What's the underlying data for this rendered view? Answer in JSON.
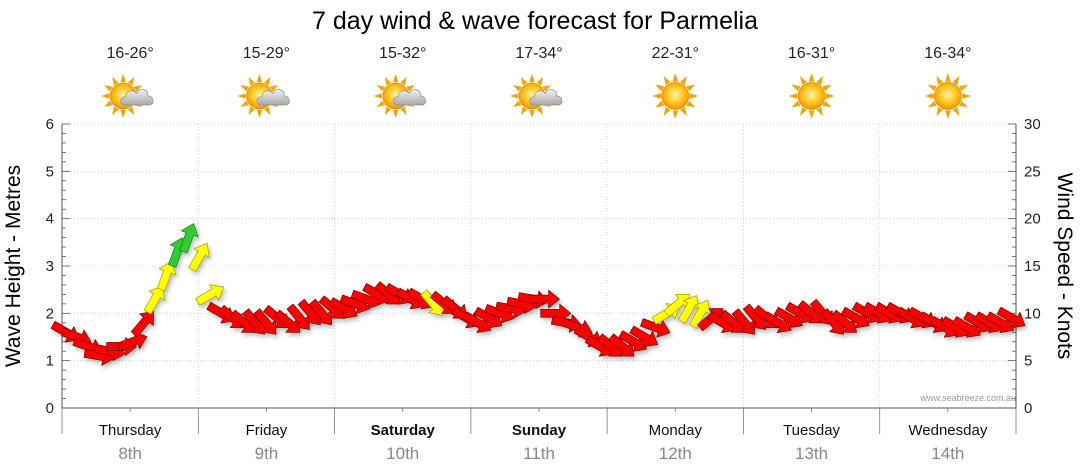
{
  "chart_data": {
    "type": "line",
    "title": "7 day wind & wave forecast for Parmelia",
    "ylabel_left": "Wave Height - Metres",
    "ylabel_right": "Wind Speed - Knots",
    "ylim_left": [
      0,
      6
    ],
    "ylim_right": [
      0,
      30
    ],
    "yticks_left": [
      "0",
      "1",
      "2",
      "3",
      "4",
      "5",
      "6"
    ],
    "yticks_right": [
      "0",
      "5",
      "10",
      "15",
      "20",
      "25",
      "30"
    ],
    "credit": "www.seabreeze.com.au",
    "days": [
      {
        "name": "Thursday",
        "date": "8th",
        "temp": "16-26°",
        "icon": "sun-cloud-icon",
        "bold": false
      },
      {
        "name": "Friday",
        "date": "9th",
        "temp": "15-29°",
        "icon": "sun-cloud-icon",
        "bold": false
      },
      {
        "name": "Saturday",
        "date": "10th",
        "temp": "15-32°",
        "icon": "sun-cloud-icon",
        "bold": true
      },
      {
        "name": "Sunday",
        "date": "11th",
        "temp": "17-34°",
        "icon": "sun-cloud-icon",
        "bold": true
      },
      {
        "name": "Monday",
        "date": "12th",
        "temp": "22-31°",
        "icon": "sun-icon",
        "bold": false
      },
      {
        "name": "Tuesday",
        "date": "13th",
        "temp": "16-31°",
        "icon": "sun-icon",
        "bold": false
      },
      {
        "name": "Wednesday",
        "date": "14th",
        "temp": "16-34°",
        "icon": "sun-icon",
        "bold": false
      }
    ],
    "wind_speed_knots": [
      8,
      7,
      6,
      5,
      6,
      5,
      7,
      9,
      13,
      16,
      18,
      19,
      17,
      15,
      12,
      11,
      10,
      10,
      9,
      11,
      11,
      10,
      9,
      9,
      10,
      10,
      9,
      11,
      12,
      12,
      11,
      12,
      12,
      13,
      12,
      12,
      11,
      11,
      11,
      11,
      10,
      11,
      11,
      10,
      10,
      9,
      8,
      7,
      6,
      5,
      6,
      7,
      8,
      10,
      13,
      15,
      15,
      13,
      11,
      11,
      10,
      10,
      9,
      10,
      10,
      10,
      11,
      11,
      10,
      10,
      10,
      10,
      11,
      11,
      10,
      10,
      10,
      10,
      10,
      9,
      9,
      9,
      9,
      9,
      9,
      9
    ],
    "wind_direction_deg": [
      300,
      290,
      290,
      280,
      280,
      270,
      250,
      220,
      210,
      200,
      200,
      200,
      210,
      240,
      300,
      310,
      310,
      320,
      320,
      310,
      310,
      320,
      320,
      320,
      310,
      300,
      290,
      290,
      300,
      310,
      300,
      300,
      300,
      320,
      310,
      310,
      300,
      300,
      300,
      290,
      280,
      280,
      280,
      270,
      270,
      280,
      290,
      300,
      300,
      310,
      310,
      300,
      300,
      290,
      240,
      230,
      210,
      210,
      230,
      300,
      310,
      320,
      320,
      310,
      300,
      300,
      300,
      310,
      320,
      320,
      310,
      300,
      300,
      300,
      300,
      300,
      300,
      300,
      300,
      300,
      300,
      300,
      300,
      300,
      300,
      300
    ],
    "wave_height_m": [
      1.6,
      1.5,
      1.3,
      1.1,
      1.2,
      1.3,
      1.4,
      1.8,
      2.3,
      2.8,
      3.3,
      3.6,
      3.2,
      2.4,
      2.0,
      1.9,
      1.8,
      1.8,
      1.8,
      1.9,
      1.8,
      1.9,
      2.0,
      2.0,
      2.1,
      2.1,
      2.2,
      2.3,
      2.4,
      2.4,
      2.4,
      2.3,
      2.3,
      2.2,
      2.2,
      2.1,
      1.9,
      1.8,
      1.9,
      2.0,
      2.1,
      2.2,
      2.3,
      2.3,
      2.0,
      1.8,
      1.7,
      1.5,
      1.3,
      1.3,
      1.3,
      1.4,
      1.5,
      1.7,
      2.0,
      2.2,
      2.1,
      2.0,
      1.9,
      1.8,
      1.8,
      1.8,
      1.9,
      1.9,
      1.8,
      1.9,
      2.0,
      2.0,
      2.0,
      1.8,
      1.8,
      1.9,
      2.0,
      2.0,
      2.0,
      2.0,
      1.9,
      1.9,
      1.8,
      1.7,
      1.7,
      1.7,
      1.8,
      1.8,
      1.8,
      1.9
    ],
    "wind_colors": {
      "light": "#ff0000",
      "moderate": "#ffff00",
      "strong": "#33cc33"
    }
  }
}
